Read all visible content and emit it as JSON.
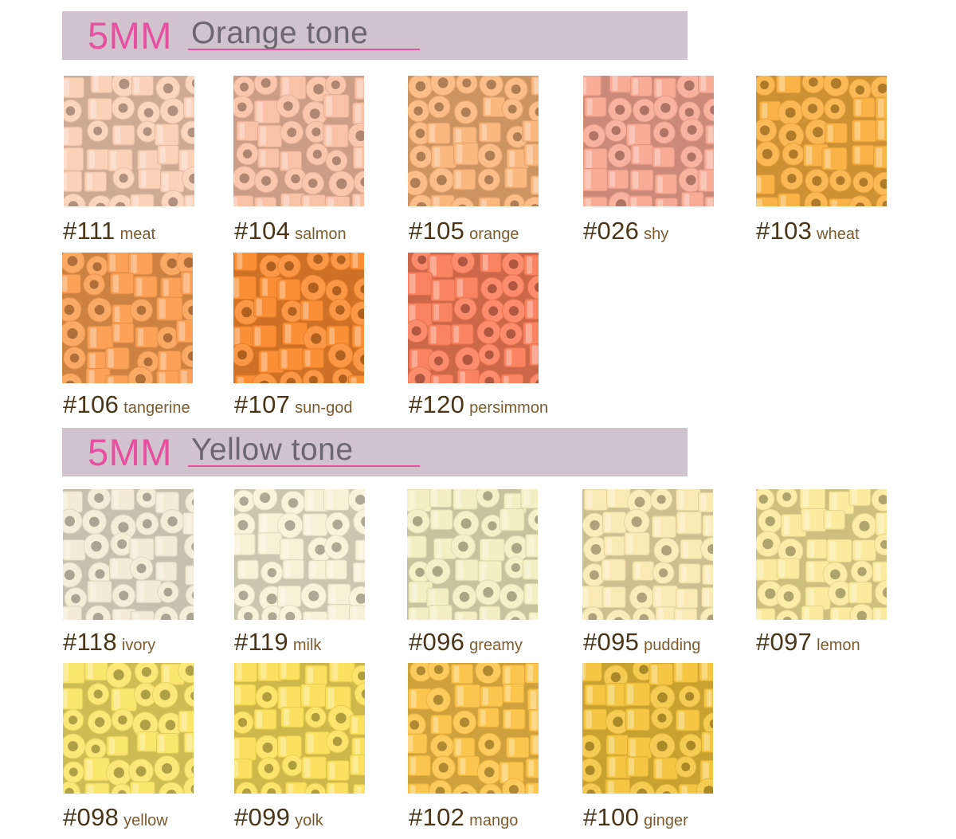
{
  "sections": [
    {
      "size_label": "5MM",
      "tone_label": "Orange tone",
      "items": [
        {
          "code": "#111",
          "name": "meat",
          "color": "#fbcfb5"
        },
        {
          "code": "#104",
          "name": "salmon",
          "color": "#f9bfa2"
        },
        {
          "code": "#105",
          "name": "orange",
          "color": "#fab479"
        },
        {
          "code": "#026",
          "name": "shy",
          "color": "#f8a791"
        },
        {
          "code": "#103",
          "name": "wheat",
          "color": "#fab03e"
        },
        {
          "code": "#106",
          "name": "tangerine",
          "color": "#fb9e51"
        },
        {
          "code": "#107",
          "name": "sun-god",
          "color": "#fb8a2e"
        },
        {
          "code": "#120",
          "name": "persimmon",
          "color": "#fa7e5a"
        }
      ]
    },
    {
      "size_label": "5MM",
      "tone_label": "Yellow tone",
      "items": [
        {
          "code": "#118",
          "name": "ivory",
          "color": "#f2ead3"
        },
        {
          "code": "#119",
          "name": "milk",
          "color": "#f7f1d4"
        },
        {
          "code": "#096",
          "name": "greamy",
          "color": "#f3eec0"
        },
        {
          "code": "#095",
          "name": "pudding",
          "color": "#fbe9b1"
        },
        {
          "code": "#097",
          "name": "lemon",
          "color": "#fce99b"
        },
        {
          "code": "#098",
          "name": "yellow",
          "color": "#fae567"
        },
        {
          "code": "#099",
          "name": "yolk",
          "color": "#fce059"
        },
        {
          "code": "#102",
          "name": "mango",
          "color": "#fcc447"
        },
        {
          "code": "#100",
          "name": "ginger",
          "color": "#f4c43b"
        }
      ]
    }
  ]
}
